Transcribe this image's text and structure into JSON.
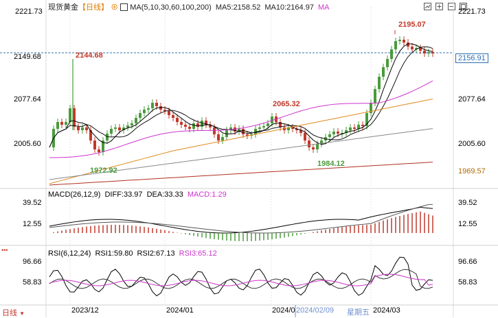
{
  "header": {
    "title": "现货黄金",
    "period_tag": "【日线】",
    "ma_label": "MA(5,10,30,60,100,200)",
    "ma5": "MA5:2158.52",
    "ma10": "MA10:2164.97",
    "ma_more": "MA"
  },
  "toolbar": {
    "icons": [
      "chart-type-icon",
      "zoom-in-icon",
      "zoom-out-icon",
      "maximize-icon"
    ]
  },
  "main_chart": {
    "left_axis": [
      "2221.73",
      "2149.68",
      "2077.64",
      "2005.60"
    ],
    "right_axis": [
      "2221.73",
      "2077.64",
      "2005.60"
    ],
    "current_price": "2156.91",
    "right_low_label": "1969.57",
    "annotations": {
      "high": "2195.07",
      "first_high": "2144.68",
      "mid_high": "2065.32",
      "low_left": "1972.92",
      "low_right": "1984.12"
    }
  },
  "macd": {
    "label": "MACD(26,12,9)",
    "diff": "DIFF:33.97",
    "dea": "DEA:33.33",
    "macd": "MACD:1.29",
    "left_axis": [
      "39.52",
      "12.55"
    ],
    "right_axis": [
      "39.52",
      "12.55"
    ]
  },
  "rsi": {
    "label": "RSI(6,12,24)",
    "rsi1": "RSI1:59.80",
    "rsi2": "RSI2:67.13",
    "rsi3": "RSI3:65.12",
    "left_axis": [
      "96.66",
      "58.83"
    ],
    "right_axis": [
      "96.66",
      "58.83"
    ]
  },
  "footer": {
    "period_button": "日线",
    "dates": [
      "2023/12",
      "2024/01",
      "2024/0"
    ],
    "cursor_date": "2024/02/09",
    "cursor_weekday": "星期五",
    "last_date": "2024/03"
  },
  "colors": {
    "up": "#4a9b3c",
    "down": "#c0392b",
    "ma5": "#000000",
    "ma10": "#111111",
    "ma30": "#cc33cc",
    "ma60": "#e08a1e",
    "ma100": "#888888",
    "ma200": "#b03020",
    "price_line": "#2a6fb0",
    "cursor": "#6f8fd0"
  }
}
